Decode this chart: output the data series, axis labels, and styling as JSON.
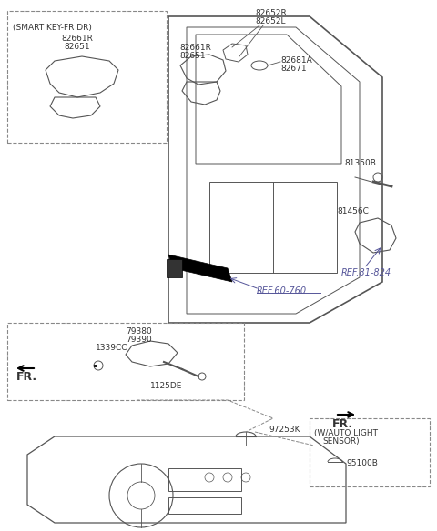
{
  "title": "",
  "bg_color": "#ffffff",
  "fig_w": 4.8,
  "fig_h": 5.84,
  "labels": {
    "smart_key_box_title": "(SMART KEY-FR DR)",
    "smart_key_parts": [
      "82661R",
      "82651"
    ],
    "handle_parts_1": [
      "82661R",
      "82651"
    ],
    "top_parts_R": [
      "82652R",
      "82652L"
    ],
    "top_parts_mid": [
      "82681A",
      "82671"
    ],
    "right_upper": "81350B",
    "right_lower": "81456C",
    "ref_81_824": "REF.81-824",
    "ref_60_760": "REF.60-760",
    "checker_parts": [
      "79380",
      "79390"
    ],
    "bolt_part": "1339CC",
    "fr_left": "FR.",
    "fr_right": "FR.",
    "screw_part": "1125DE",
    "sensor_top": "97253K",
    "auto_light_box_title": "(W/AUTO LIGHT\n  SENSOR)",
    "auto_light_part": "95100B"
  },
  "text_color": "#333333",
  "line_color": "#555555",
  "ref_color": "#555599",
  "dashed_color": "#888888"
}
